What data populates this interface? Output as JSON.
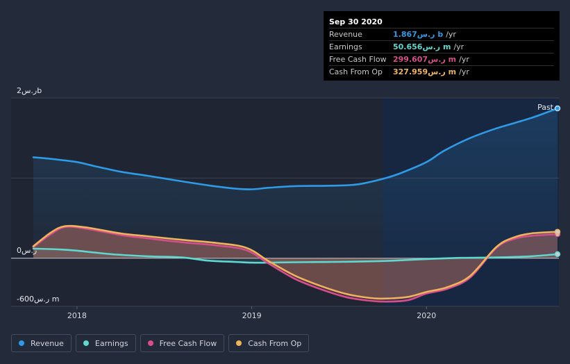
{
  "tooltip": {
    "date": "Sep 30 2020",
    "rows": [
      {
        "label": "Revenue",
        "value": "1.867ر.س b",
        "unit": "/yr",
        "color": "#2f9ae6"
      },
      {
        "label": "Earnings",
        "value": "50.656ر.س m",
        "unit": "/yr",
        "color": "#5fd8cf"
      },
      {
        "label": "Free Cash Flow",
        "value": "299.607ر.س m",
        "unit": "/yr",
        "color": "#d64f8a"
      },
      {
        "label": "Cash From Op",
        "value": "327.959ر.س m",
        "unit": "/yr",
        "color": "#efb35e"
      }
    ]
  },
  "chart_data": {
    "type": "line",
    "title": "",
    "ylabel_top": "ر.س2b",
    "zero_label": "ر.س0",
    "ylabel_bottom": "-600ر.س m",
    "past_label": "Past",
    "ylim": [
      -600,
      2000
    ],
    "x_ticks": [
      {
        "label": "2018",
        "t": 2018.0
      },
      {
        "label": "2019",
        "t": 2019.0
      },
      {
        "label": "2020",
        "t": 2020.0
      }
    ],
    "future_start": 2019.75,
    "series": [
      {
        "name": "Revenue",
        "color": "#2f9ae6",
        "x": [
          2017.75,
          2017.85,
          2018.0,
          2018.1,
          2018.25,
          2018.4,
          2018.6,
          2018.75,
          2018.9,
          2019.0,
          2019.1,
          2019.25,
          2019.45,
          2019.6,
          2019.75,
          2019.85,
          2020.0,
          2020.1,
          2020.25,
          2020.4,
          2020.6,
          2020.75
        ],
        "values": [
          1260,
          1240,
          1200,
          1150,
          1080,
          1030,
          960,
          910,
          870,
          860,
          880,
          900,
          905,
          920,
          990,
          1060,
          1200,
          1340,
          1500,
          1620,
          1750,
          1870
        ]
      },
      {
        "name": "Earnings",
        "color": "#5fd8cf",
        "x": [
          2017.75,
          2017.9,
          2018.0,
          2018.2,
          2018.4,
          2018.6,
          2018.75,
          2018.9,
          2019.0,
          2019.1,
          2019.25,
          2019.5,
          2019.75,
          2019.9,
          2020.0,
          2020.2,
          2020.4,
          2020.6,
          2020.75
        ],
        "values": [
          120,
          110,
          95,
          50,
          25,
          10,
          -30,
          -45,
          -55,
          -55,
          -50,
          -45,
          -35,
          -20,
          -10,
          5,
          10,
          25,
          51
        ]
      },
      {
        "name": "Free Cash Flow",
        "color": "#d64f8a",
        "x": [
          2017.75,
          2017.85,
          2017.93,
          2018.05,
          2018.25,
          2018.4,
          2018.6,
          2018.8,
          2018.97,
          2019.1,
          2019.25,
          2019.4,
          2019.55,
          2019.7,
          2019.8,
          2019.9,
          2020.0,
          2020.12,
          2020.25,
          2020.4,
          2020.5,
          2020.6,
          2020.75
        ],
        "values": [
          140,
          300,
          390,
          370,
          290,
          250,
          200,
          160,
          100,
          -70,
          -260,
          -390,
          -490,
          -535,
          -540,
          -520,
          -440,
          -380,
          -240,
          130,
          240,
          280,
          300
        ]
      },
      {
        "name": "Cash From Op",
        "color": "#efb35e",
        "x": [
          2017.75,
          2017.85,
          2017.93,
          2018.05,
          2018.25,
          2018.4,
          2018.6,
          2018.8,
          2018.97,
          2019.1,
          2019.25,
          2019.4,
          2019.55,
          2019.7,
          2019.8,
          2019.9,
          2020.0,
          2020.12,
          2020.25,
          2020.4,
          2020.5,
          2020.6,
          2020.75
        ],
        "values": [
          150,
          320,
          400,
          385,
          310,
          275,
          230,
          190,
          130,
          -40,
          -220,
          -350,
          -450,
          -500,
          -500,
          -480,
          -420,
          -360,
          -220,
          140,
          260,
          310,
          330
        ]
      }
    ]
  },
  "legend": [
    {
      "label": "Revenue",
      "color": "#2f9ae6"
    },
    {
      "label": "Earnings",
      "color": "#5fd8cf"
    },
    {
      "label": "Free Cash Flow",
      "color": "#d64f8a"
    },
    {
      "label": "Cash From Op",
      "color": "#efb35e"
    }
  ]
}
